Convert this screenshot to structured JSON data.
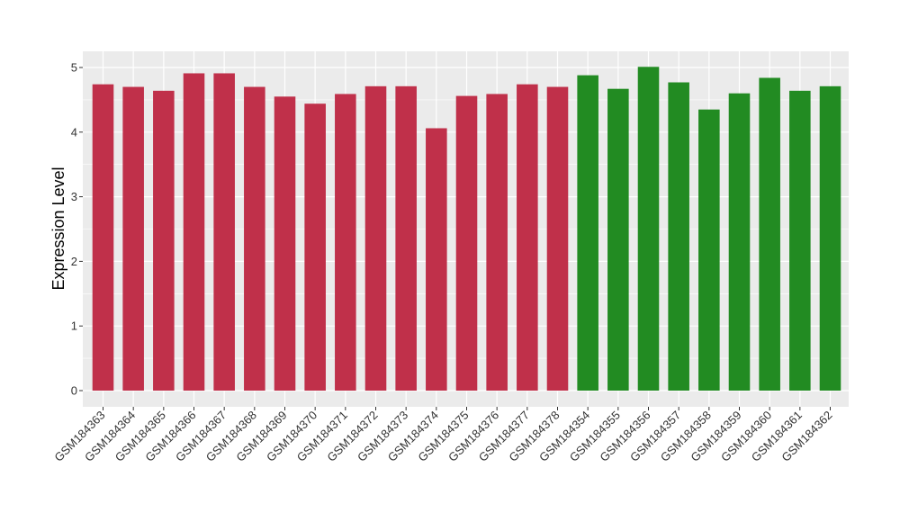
{
  "chart_data": {
    "type": "bar",
    "title": "",
    "xlabel": "",
    "ylabel": "Expression Level",
    "ylim": [
      0,
      5.25
    ],
    "yticks": [
      0,
      1,
      2,
      3,
      4,
      5
    ],
    "ytick_labels": [
      "0",
      "1",
      "2",
      "3",
      "4",
      "5"
    ],
    "grid": true,
    "legend": "none",
    "categories": [
      "GSM184363",
      "GSM184364",
      "GSM184365",
      "GSM184366",
      "GSM184367",
      "GSM184368",
      "GSM184369",
      "GSM184370",
      "GSM184371",
      "GSM184372",
      "GSM184373",
      "GSM184374",
      "GSM184375",
      "GSM184376",
      "GSM184377",
      "GSM184378",
      "GSM184354",
      "GSM184355",
      "GSM184356",
      "GSM184357",
      "GSM184358",
      "GSM184359",
      "GSM184360",
      "GSM184361",
      "GSM184362"
    ],
    "values": [
      4.74,
      4.7,
      4.64,
      4.91,
      4.91,
      4.7,
      4.55,
      4.44,
      4.59,
      4.71,
      4.71,
      4.06,
      4.56,
      4.59,
      4.74,
      4.7,
      4.88,
      4.67,
      5.01,
      4.77,
      4.35,
      4.6,
      4.84,
      4.64,
      4.71
    ],
    "bar_colors": [
      "#C0304A",
      "#C0304A",
      "#C0304A",
      "#C0304A",
      "#C0304A",
      "#C0304A",
      "#C0304A",
      "#C0304A",
      "#C0304A",
      "#C0304A",
      "#C0304A",
      "#C0304A",
      "#C0304A",
      "#C0304A",
      "#C0304A",
      "#C0304A",
      "#228B22",
      "#228B22",
      "#228B22",
      "#228B22",
      "#228B22",
      "#228B22",
      "#228B22",
      "#228B22",
      "#228B22"
    ],
    "panel_background": "#EBEBEB",
    "grid_color": "#FFFFFF"
  }
}
